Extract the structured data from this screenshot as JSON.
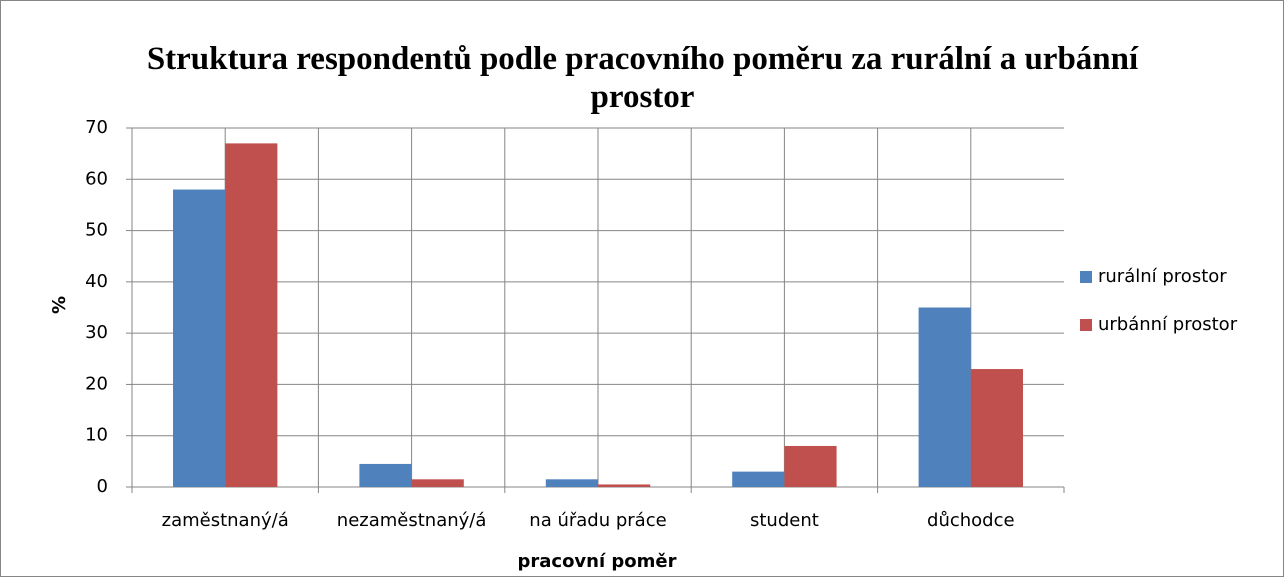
{
  "chart_data": {
    "type": "bar",
    "title": "Struktura respondentů podle pracovního poměru za rurální a urbánní prostor",
    "x_label": "pracovní poměr",
    "y_label": "%",
    "categories": [
      "zaměstnaný/á",
      "nezaměstnaný/á",
      "na úřadu práce",
      "student",
      "důchodce"
    ],
    "series": [
      {
        "name": "rurální prostor",
        "color": "#4f81bd",
        "values": [
          58,
          4.5,
          1.5,
          3,
          35
        ]
      },
      {
        "name": "urbánní prostor",
        "color": "#c0504d",
        "values": [
          67,
          1.5,
          0.5,
          8,
          23
        ]
      }
    ],
    "ylim": [
      0,
      70
    ],
    "yticks": [
      0,
      10,
      20,
      30,
      40,
      50,
      60,
      70
    ],
    "grid": true,
    "legend": "right"
  }
}
